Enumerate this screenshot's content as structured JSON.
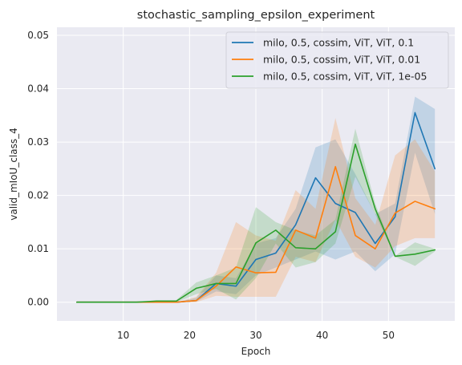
{
  "chart_data": {
    "type": "line",
    "title": "stochastic_sampling_epsilon_experiment",
    "xlabel": "Epoch",
    "ylabel": "valid_mIoU_class_4",
    "xlim": [
      0,
      60
    ],
    "ylim": [
      -0.0035,
      0.0515
    ],
    "x_ticks": [
      10,
      20,
      30,
      40,
      50
    ],
    "y_ticks": [
      0.0,
      0.01,
      0.02,
      0.03,
      0.04,
      0.05
    ],
    "y_tick_labels": [
      "0.00",
      "0.01",
      "0.02",
      "0.03",
      "0.04",
      "0.05"
    ],
    "grid": true,
    "legend_position": "top-right",
    "background": "#eaeaf2",
    "x": [
      3,
      6,
      9,
      12,
      15,
      18,
      21,
      24,
      27,
      30,
      33,
      36,
      39,
      42,
      45,
      48,
      51,
      54,
      57
    ],
    "series": [
      {
        "name": "milo, 0.5, cossim, ViT, ViT, 0.1",
        "color": "#1f77b4",
        "values": [
          0.0,
          0.0,
          0.0,
          0.0,
          0.0,
          0.0,
          0.0003,
          0.0035,
          0.003,
          0.008,
          0.0092,
          0.0145,
          0.0233,
          0.0185,
          0.0168,
          0.011,
          0.016,
          0.0355,
          0.025
        ],
        "lower": [
          0.0,
          0.0,
          0.0,
          0.0,
          0.0,
          0.0,
          0.0001,
          0.002,
          0.0015,
          0.005,
          0.0065,
          0.008,
          0.0095,
          0.008,
          0.0095,
          0.0058,
          0.009,
          0.028,
          0.0165
        ],
        "upper": [
          0.0,
          0.0,
          0.0,
          0.0,
          0.0,
          0.0,
          0.0008,
          0.005,
          0.0045,
          0.011,
          0.012,
          0.0175,
          0.029,
          0.0305,
          0.024,
          0.0165,
          0.0185,
          0.0385,
          0.0362
        ]
      },
      {
        "name": "milo, 0.5, cossim, ViT, ViT, 0.01",
        "color": "#ff7f0e",
        "values": [
          0.0,
          0.0,
          0.0,
          0.0,
          0.0,
          0.0,
          0.0003,
          0.003,
          0.0066,
          0.0055,
          0.0056,
          0.0135,
          0.012,
          0.0254,
          0.0125,
          0.01,
          0.0167,
          0.0189,
          0.0175
        ],
        "lower": [
          0.0,
          0.0,
          0.0,
          0.0,
          0.0,
          0.0,
          0.0,
          0.0012,
          0.001,
          0.001,
          0.001,
          0.0085,
          0.0075,
          0.0155,
          0.0085,
          0.0065,
          0.0105,
          0.012,
          0.012
        ],
        "upper": [
          0.0,
          0.0,
          0.0,
          0.0,
          0.0,
          0.0,
          0.001,
          0.0055,
          0.015,
          0.0125,
          0.0115,
          0.021,
          0.0175,
          0.0345,
          0.0195,
          0.0145,
          0.0275,
          0.0305,
          0.0245
        ]
      },
      {
        "name": "milo, 0.5, cossim, ViT, ViT, 1e-05",
        "color": "#2ca02c",
        "values": [
          0.0,
          0.0,
          0.0,
          0.0,
          0.0002,
          0.0002,
          0.0026,
          0.0035,
          0.0035,
          0.0111,
          0.0135,
          0.0102,
          0.01,
          0.0132,
          0.0296,
          0.0175,
          0.0086,
          0.009,
          0.0098
        ],
        "lower": [
          0.0,
          0.0,
          0.0,
          0.0,
          0.0,
          0.0,
          0.0015,
          0.0025,
          0.0005,
          0.0045,
          0.011,
          0.0065,
          0.0075,
          0.011,
          0.0235,
          0.0165,
          0.0085,
          0.0068,
          0.0095
        ],
        "upper": [
          0.0,
          0.0,
          0.0,
          0.0,
          0.0004,
          0.0004,
          0.0037,
          0.005,
          0.0065,
          0.0178,
          0.015,
          0.0135,
          0.0125,
          0.0155,
          0.0325,
          0.0185,
          0.0087,
          0.0112,
          0.01
        ]
      }
    ]
  }
}
